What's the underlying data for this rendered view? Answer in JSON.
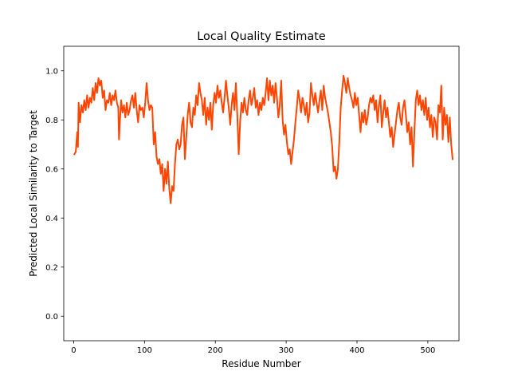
{
  "chart_data": {
    "type": "line",
    "title": "Local Quality Estimate",
    "xlabel": "Residue Number",
    "ylabel": "Predicted Local Similarity to Target",
    "xlim": [
      -14,
      544
    ],
    "ylim": [
      -0.1,
      1.1
    ],
    "xticks": [
      0,
      100,
      200,
      300,
      400,
      500
    ],
    "yticks": [
      0.0,
      0.2,
      0.4,
      0.6,
      0.8,
      1.0
    ],
    "xtick_labels": [
      "0",
      "100",
      "200",
      "300",
      "400",
      "500"
    ],
    "ytick_labels": [
      "0.0",
      "0.2",
      "0.4",
      "0.6",
      "0.8",
      "1.0"
    ],
    "grid": false,
    "series": [
      {
        "color": "#ff4500",
        "points": [
          [
            1,
            0.66
          ],
          [
            3,
            0.67
          ],
          [
            5,
            0.75
          ],
          [
            6,
            0.69
          ],
          [
            7,
            0.87
          ],
          [
            9,
            0.79
          ],
          [
            11,
            0.86
          ],
          [
            13,
            0.83
          ],
          [
            15,
            0.88
          ],
          [
            17,
            0.84
          ],
          [
            19,
            0.9
          ],
          [
            21,
            0.85
          ],
          [
            23,
            0.89
          ],
          [
            25,
            0.87
          ],
          [
            27,
            0.93
          ],
          [
            29,
            0.88
          ],
          [
            31,
            0.95
          ],
          [
            33,
            0.91
          ],
          [
            35,
            0.97
          ],
          [
            37,
            0.94
          ],
          [
            39,
            0.96
          ],
          [
            41,
            0.89
          ],
          [
            43,
            0.92
          ],
          [
            45,
            0.84
          ],
          [
            47,
            0.88
          ],
          [
            49,
            0.87
          ],
          [
            51,
            0.91
          ],
          [
            53,
            0.86
          ],
          [
            55,
            0.9
          ],
          [
            57,
            0.88
          ],
          [
            59,
            0.92
          ],
          [
            61,
            0.87
          ],
          [
            63,
            0.85
          ],
          [
            64,
            0.72
          ],
          [
            65,
            0.78
          ],
          [
            67,
            0.88
          ],
          [
            69,
            0.83
          ],
          [
            71,
            0.86
          ],
          [
            73,
            0.81
          ],
          [
            75,
            0.87
          ],
          [
            77,
            0.82
          ],
          [
            79,
            0.84
          ],
          [
            81,
            0.88
          ],
          [
            83,
            0.9
          ],
          [
            85,
            0.85
          ],
          [
            87,
            0.91
          ],
          [
            89,
            0.84
          ],
          [
            91,
            0.79
          ],
          [
            93,
            0.86
          ],
          [
            95,
            0.84
          ],
          [
            97,
            0.85
          ],
          [
            99,
            0.81
          ],
          [
            101,
            0.87
          ],
          [
            103,
            0.95
          ],
          [
            105,
            0.88
          ],
          [
            107,
            0.84
          ],
          [
            109,
            0.86
          ],
          [
            111,
            0.85
          ],
          [
            113,
            0.7
          ],
          [
            115,
            0.75
          ],
          [
            117,
            0.65
          ],
          [
            119,
            0.62
          ],
          [
            121,
            0.64
          ],
          [
            123,
            0.58
          ],
          [
            125,
            0.62
          ],
          [
            127,
            0.51
          ],
          [
            129,
            0.6
          ],
          [
            131,
            0.54
          ],
          [
            133,
            0.63
          ],
          [
            135,
            0.52
          ],
          [
            137,
            0.46
          ],
          [
            139,
            0.53
          ],
          [
            141,
            0.51
          ],
          [
            143,
            0.62
          ],
          [
            145,
            0.7
          ],
          [
            147,
            0.72
          ],
          [
            149,
            0.68
          ],
          [
            151,
            0.7
          ],
          [
            153,
            0.78
          ],
          [
            155,
            0.81
          ],
          [
            157,
            0.64
          ],
          [
            159,
            0.73
          ],
          [
            161,
            0.82
          ],
          [
            163,
            0.87
          ],
          [
            165,
            0.79
          ],
          [
            167,
            0.77
          ],
          [
            169,
            0.85
          ],
          [
            171,
            0.82
          ],
          [
            173,
            0.9
          ],
          [
            175,
            0.86
          ],
          [
            177,
            0.95
          ],
          [
            179,
            0.91
          ],
          [
            181,
            0.88
          ],
          [
            183,
            0.82
          ],
          [
            185,
            0.89
          ],
          [
            187,
            0.78
          ],
          [
            189,
            0.85
          ],
          [
            191,
            0.8
          ],
          [
            193,
            0.87
          ],
          [
            195,
            0.76
          ],
          [
            197,
            0.86
          ],
          [
            199,
            0.91
          ],
          [
            201,
            0.87
          ],
          [
            203,
            0.94
          ],
          [
            205,
            0.89
          ],
          [
            207,
            0.92
          ],
          [
            209,
            0.87
          ],
          [
            211,
            0.83
          ],
          [
            213,
            0.89
          ],
          [
            215,
            0.96
          ],
          [
            217,
            0.9
          ],
          [
            219,
            0.85
          ],
          [
            221,
            0.78
          ],
          [
            223,
            0.86
          ],
          [
            225,
            0.91
          ],
          [
            227,
            0.84
          ],
          [
            229,
            0.95
          ],
          [
            231,
            0.82
          ],
          [
            233,
            0.66
          ],
          [
            235,
            0.79
          ],
          [
            237,
            0.87
          ],
          [
            239,
            0.83
          ],
          [
            241,
            0.89
          ],
          [
            243,
            0.84
          ],
          [
            245,
            0.82
          ],
          [
            247,
            0.88
          ],
          [
            249,
            0.92
          ],
          [
            251,
            0.86
          ],
          [
            253,
            0.89
          ],
          [
            255,
            0.93
          ],
          [
            257,
            0.85
          ],
          [
            259,
            0.88
          ],
          [
            261,
            0.82
          ],
          [
            263,
            0.87
          ],
          [
            265,
            0.84
          ],
          [
            267,
            0.89
          ],
          [
            269,
            0.86
          ],
          [
            271,
            0.91
          ],
          [
            273,
            0.97
          ],
          [
            275,
            0.88
          ],
          [
            277,
            0.96
          ],
          [
            279,
            0.9
          ],
          [
            281,
            0.94
          ],
          [
            283,
            0.87
          ],
          [
            285,
            0.95
          ],
          [
            287,
            0.89
          ],
          [
            289,
            0.81
          ],
          [
            291,
            0.86
          ],
          [
            293,
            0.96
          ],
          [
            295,
            0.8
          ],
          [
            297,
            0.74
          ],
          [
            299,
            0.78
          ],
          [
            301,
            0.71
          ],
          [
            303,
            0.66
          ],
          [
            305,
            0.68
          ],
          [
            307,
            0.62
          ],
          [
            309,
            0.67
          ],
          [
            311,
            0.72
          ],
          [
            313,
            0.79
          ],
          [
            315,
            0.85
          ],
          [
            317,
            0.92
          ],
          [
            319,
            0.88
          ],
          [
            321,
            0.83
          ],
          [
            323,
            0.89
          ],
          [
            325,
            0.86
          ],
          [
            327,
            0.82
          ],
          [
            329,
            0.87
          ],
          [
            331,
            0.79
          ],
          [
            333,
            0.83
          ],
          [
            335,
            0.95
          ],
          [
            337,
            0.9
          ],
          [
            339,
            0.86
          ],
          [
            341,
            0.91
          ],
          [
            343,
            0.87
          ],
          [
            345,
            0.83
          ],
          [
            347,
            0.88
          ],
          [
            349,
            0.92
          ],
          [
            351,
            0.84
          ],
          [
            353,
            0.94
          ],
          [
            355,
            0.89
          ],
          [
            357,
            0.86
          ],
          [
            359,
            0.83
          ],
          [
            361,
            0.79
          ],
          [
            363,
            0.75
          ],
          [
            365,
            0.69
          ],
          [
            367,
            0.59
          ],
          [
            369,
            0.61
          ],
          [
            371,
            0.56
          ],
          [
            373,
            0.6
          ],
          [
            375,
            0.71
          ],
          [
            377,
            0.85
          ],
          [
            379,
            0.92
          ],
          [
            381,
            0.98
          ],
          [
            383,
            0.95
          ],
          [
            385,
            0.91
          ],
          [
            387,
            0.97
          ],
          [
            389,
            0.93
          ],
          [
            391,
            0.9
          ],
          [
            393,
            0.88
          ],
          [
            395,
            0.85
          ],
          [
            397,
            0.91
          ],
          [
            399,
            0.86
          ],
          [
            401,
            0.89
          ],
          [
            403,
            0.82
          ],
          [
            405,
            0.75
          ],
          [
            407,
            0.83
          ],
          [
            409,
            0.79
          ],
          [
            411,
            0.84
          ],
          [
            413,
            0.78
          ],
          [
            415,
            0.81
          ],
          [
            417,
            0.86
          ],
          [
            419,
            0.89
          ],
          [
            421,
            0.87
          ],
          [
            423,
            0.9
          ],
          [
            425,
            0.84
          ],
          [
            427,
            0.88
          ],
          [
            429,
            0.79
          ],
          [
            431,
            0.86
          ],
          [
            433,
            0.9
          ],
          [
            435,
            0.77
          ],
          [
            437,
            0.83
          ],
          [
            439,
            0.88
          ],
          [
            441,
            0.81
          ],
          [
            443,
            0.85
          ],
          [
            445,
            0.79
          ],
          [
            447,
            0.73
          ],
          [
            449,
            0.77
          ],
          [
            451,
            0.69
          ],
          [
            453,
            0.74
          ],
          [
            455,
            0.79
          ],
          [
            457,
            0.84
          ],
          [
            459,
            0.87
          ],
          [
            461,
            0.81
          ],
          [
            463,
            0.78
          ],
          [
            465,
            0.85
          ],
          [
            467,
            0.88
          ],
          [
            469,
            0.82
          ],
          [
            471,
            0.75
          ],
          [
            473,
            0.79
          ],
          [
            475,
            0.7
          ],
          [
            477,
            0.77
          ],
          [
            479,
            0.61
          ],
          [
            481,
            0.75
          ],
          [
            483,
            0.88
          ],
          [
            485,
            0.92
          ],
          [
            487,
            0.86
          ],
          [
            489,
            0.9
          ],
          [
            491,
            0.84
          ],
          [
            493,
            0.88
          ],
          [
            495,
            0.82
          ],
          [
            497,
            0.89
          ],
          [
            499,
            0.8
          ],
          [
            501,
            0.85
          ],
          [
            503,
            0.77
          ],
          [
            505,
            0.82
          ],
          [
            507,
            0.73
          ],
          [
            509,
            0.81
          ],
          [
            511,
            0.79
          ],
          [
            513,
            0.72
          ],
          [
            515,
            0.86
          ],
          [
            517,
            0.83
          ],
          [
            519,
            0.94
          ],
          [
            521,
            0.72
          ],
          [
            523,
            0.85
          ],
          [
            525,
            0.78
          ],
          [
            527,
            0.82
          ],
          [
            529,
            0.71
          ],
          [
            531,
            0.81
          ],
          [
            533,
            0.7
          ],
          [
            535,
            0.64
          ]
        ]
      }
    ]
  }
}
